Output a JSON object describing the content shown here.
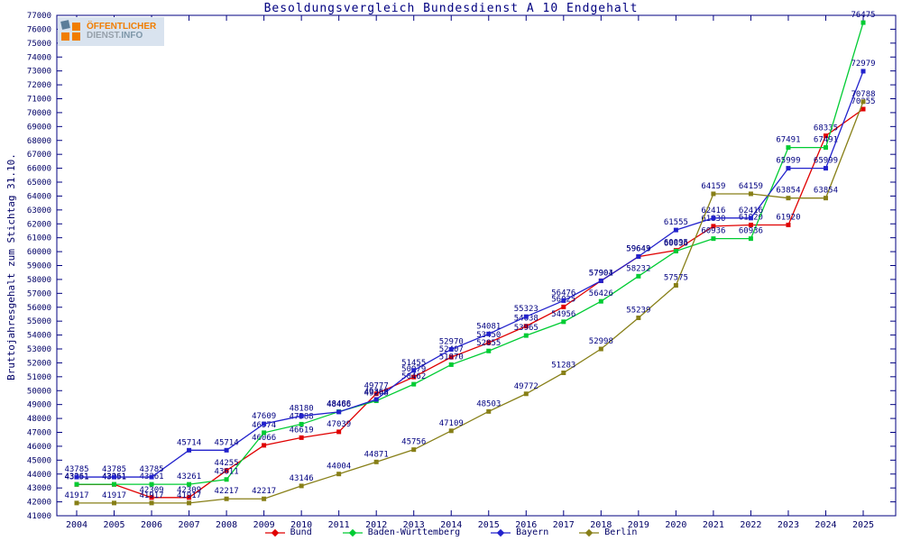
{
  "title": "Besoldungsvergleich Bundesdienst A 10 Endgehalt",
  "logo": {
    "line1": "ÖFFENTLICHER",
    "line2_a": "DIENST.",
    "line2_b": "INFO"
  },
  "axis": {
    "tick_color": "#000066",
    "frame_color": "#000080",
    "label_color": "#000080"
  },
  "chart_data": {
    "type": "line",
    "title": "Besoldungsvergleich Bundesdienst A 10 Endgehalt",
    "xlabel": "",
    "ylabel": "Bruttojahresgehalt zum Stichtag 31.10.",
    "ylim": [
      41000,
      77000
    ],
    "ytick_step": 1000,
    "grid": false,
    "legend_position": "bottom",
    "point_labels": true,
    "x": [
      2004,
      2005,
      2006,
      2007,
      2008,
      2009,
      2010,
      2011,
      2012,
      2013,
      2014,
      2015,
      2016,
      2017,
      2018,
      2019,
      2020,
      2021,
      2022,
      2023,
      2024,
      2025
    ],
    "series": [
      {
        "name": "Bund",
        "color": "#e00000",
        "values": [
          43251,
          43251,
          42309,
          42309,
          44255,
          46066,
          46619,
          47039,
          49777,
          50979,
          52407,
          53450,
          54638,
          56025,
          57904,
          59643,
          60095,
          61830,
          61920,
          61920,
          68335,
          70255
        ]
      },
      {
        "name": "Baden-Württemberg",
        "color": "#00cc33",
        "values": [
          43261,
          43261,
          43261,
          43261,
          43611,
          46974,
          47588,
          48488,
          49268,
          50462,
          51870,
          52855,
          53965,
          54956,
          56426,
          58232,
          60036,
          60936,
          60936,
          67491,
          67491,
          76475
        ]
      },
      {
        "name": "Bayern",
        "color": "#2222cc",
        "values": [
          43785,
          43785,
          43785,
          45714,
          45714,
          47609,
          48180,
          48466,
          49368,
          51455,
          52970,
          54081,
          55323,
          56476,
          57901,
          59649,
          61555,
          62416,
          62416,
          65999,
          65999,
          72979
        ]
      },
      {
        "name": "Berlin",
        "color": "#877f17",
        "values": [
          41917,
          41917,
          41917,
          41917,
          42217,
          42217,
          43146,
          44004,
          44871,
          45756,
          47109,
          48503,
          49772,
          51283,
          52998,
          55239,
          57575,
          64159,
          64159,
          63854,
          63854,
          70788
        ]
      }
    ]
  }
}
